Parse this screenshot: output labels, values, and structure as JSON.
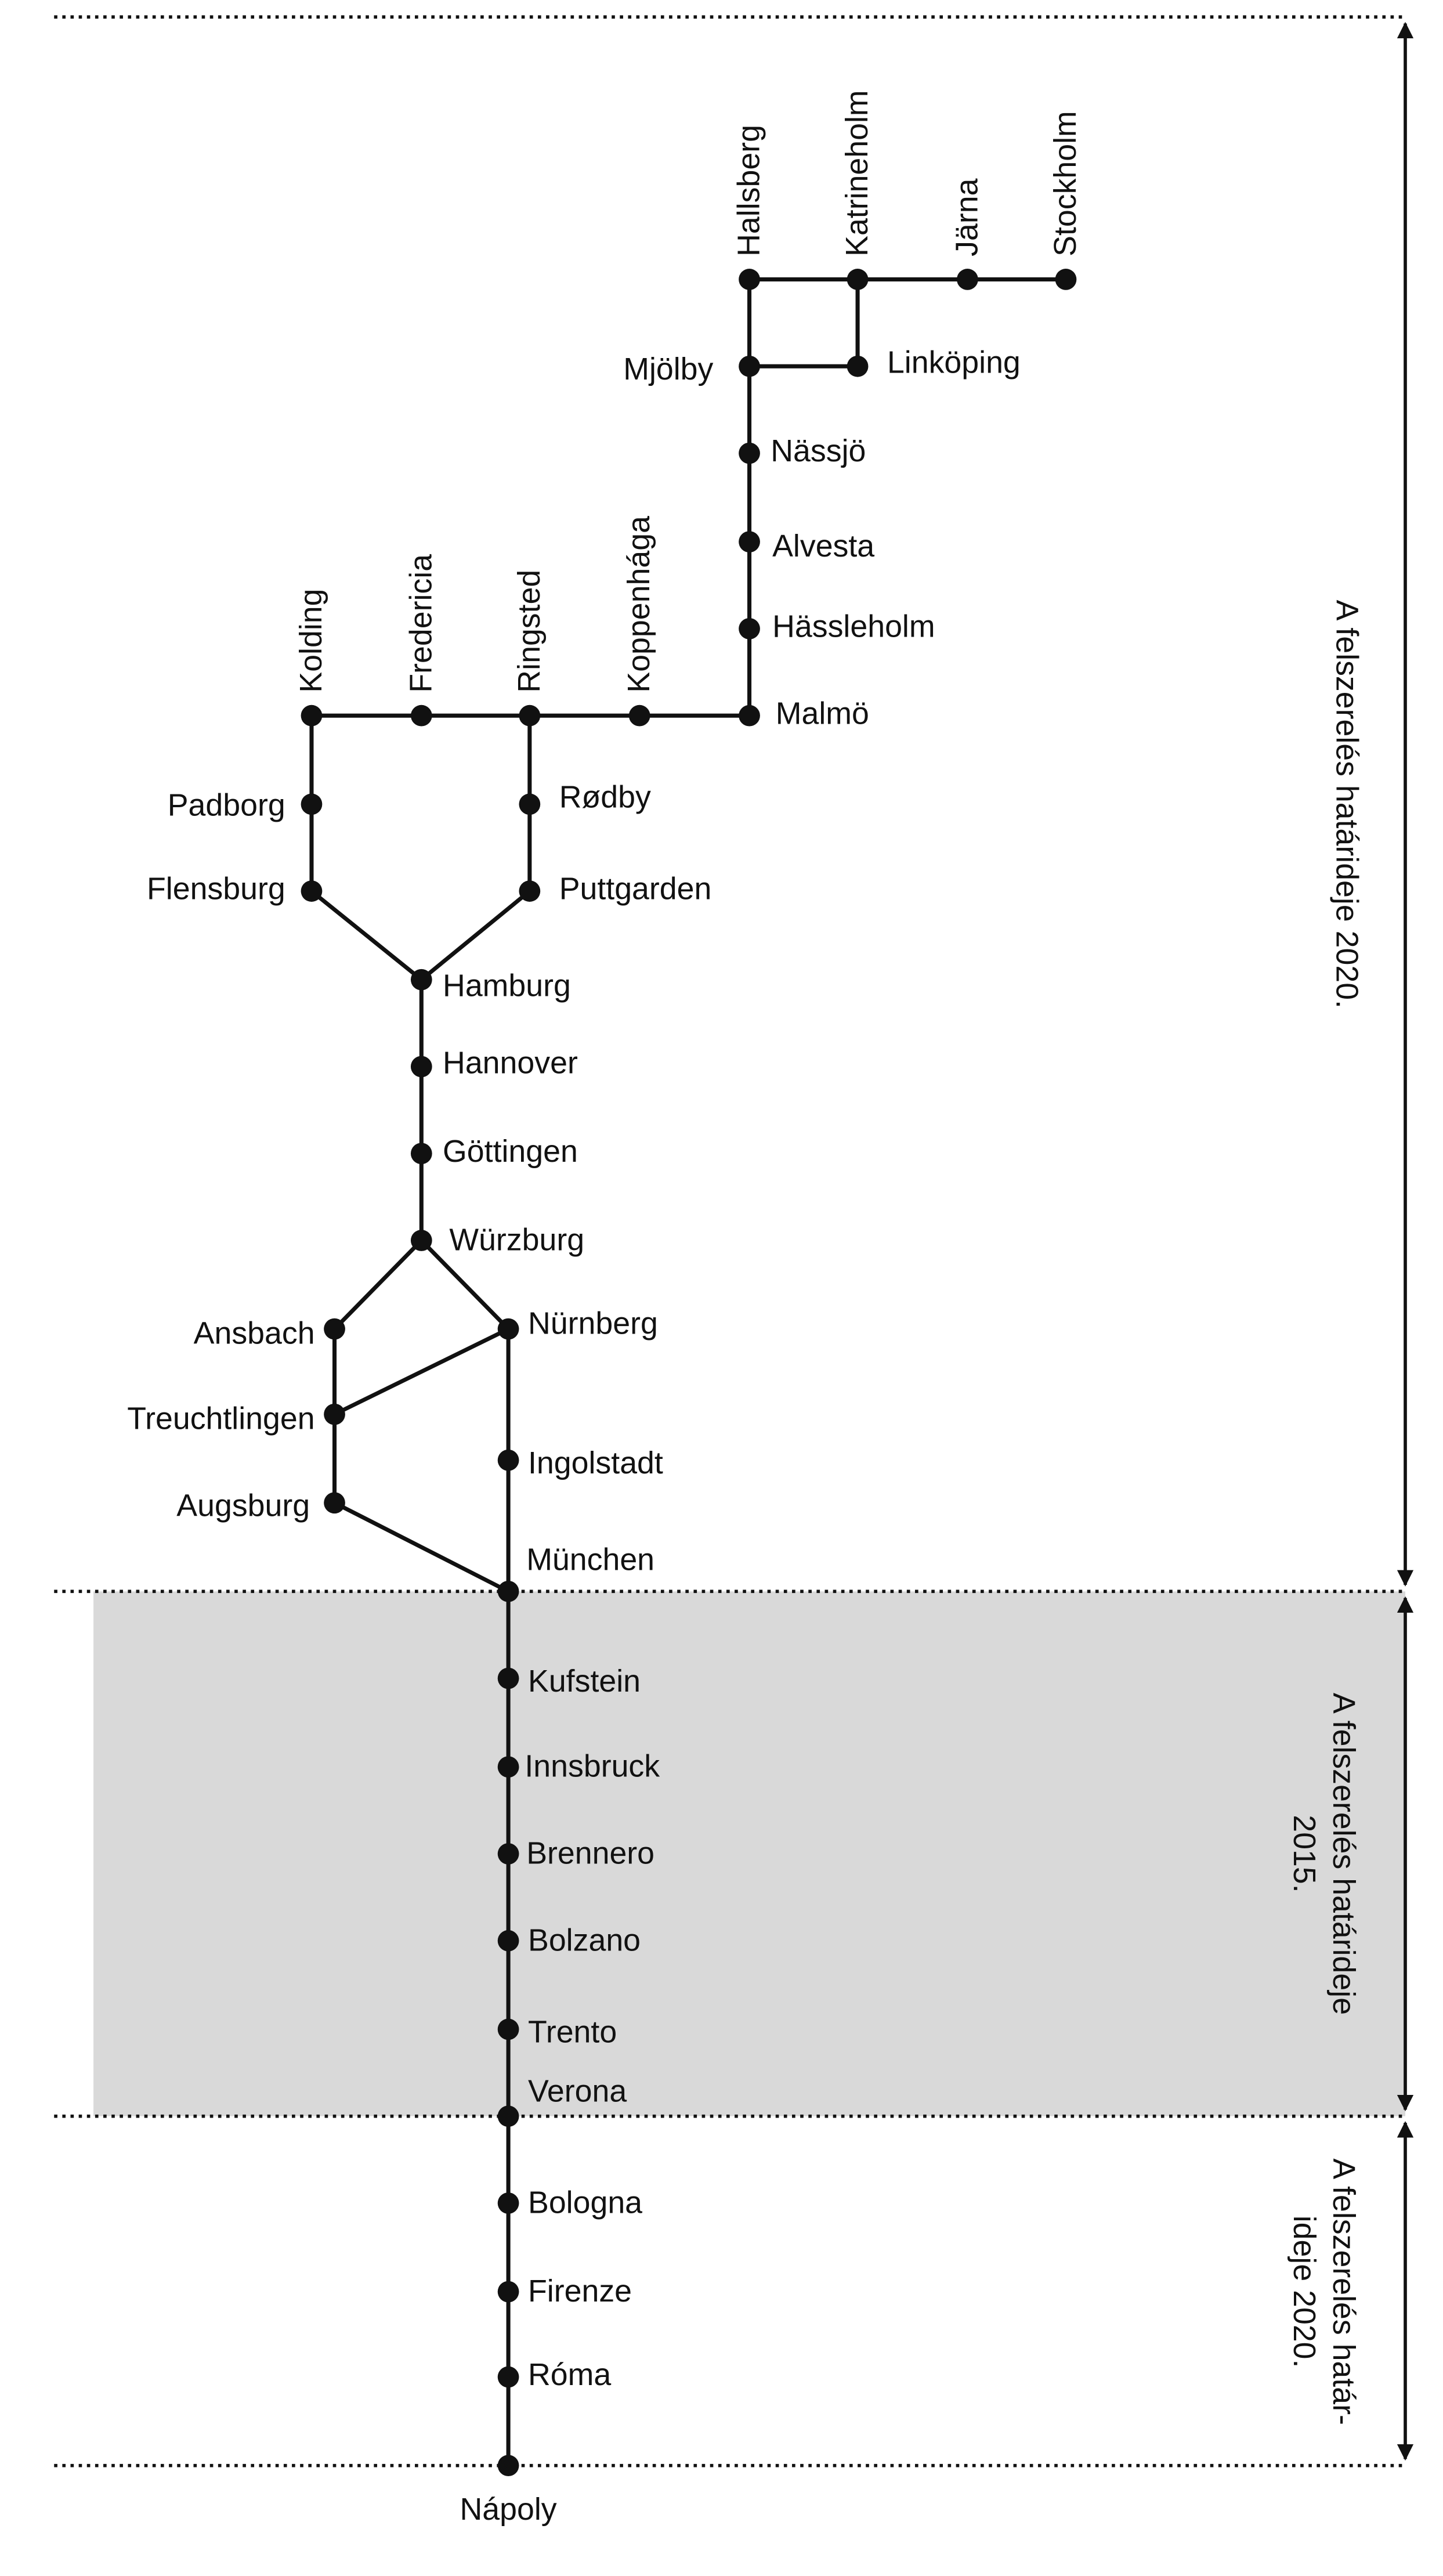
{
  "nodes": [
    {
      "label": "Hallsberg"
    },
    {
      "label": "Katrineholm"
    },
    {
      "label": "Järna"
    },
    {
      "label": "Stockholm"
    },
    {
      "label": "Mjölby"
    },
    {
      "label": "Linköping"
    },
    {
      "label": "Nässjö"
    },
    {
      "label": "Alvesta"
    },
    {
      "label": "Hässleholm"
    },
    {
      "label": "Malmö"
    },
    {
      "label": "Koppenhága"
    },
    {
      "label": "Ringsted"
    },
    {
      "label": "Fredericia"
    },
    {
      "label": "Kolding"
    },
    {
      "label": "Rødby"
    },
    {
      "label": "Padborg"
    },
    {
      "label": "Puttgarden"
    },
    {
      "label": "Flensburg"
    },
    {
      "label": "Hamburg"
    },
    {
      "label": "Hannover"
    },
    {
      "label": "Göttingen"
    },
    {
      "label": "Würzburg"
    },
    {
      "label": "Ansbach"
    },
    {
      "label": "Nürnberg"
    },
    {
      "label": "Treuchtlingen"
    },
    {
      "label": "Ingolstadt"
    },
    {
      "label": "Augsburg"
    },
    {
      "label": "München"
    },
    {
      "label": "Kufstein"
    },
    {
      "label": "Innsbruck"
    },
    {
      "label": "Brennero"
    },
    {
      "label": "Bolzano"
    },
    {
      "label": "Trento"
    },
    {
      "label": "Verona"
    },
    {
      "label": "Bologna"
    },
    {
      "label": "Firenze"
    },
    {
      "label": "Róma"
    },
    {
      "label": "Nápoly"
    }
  ],
  "deadlines": [
    {
      "lines": [
        "A felszerelés határideje 2020."
      ]
    },
    {
      "lines": [
        "A felszerelés határideje",
        "2015."
      ]
    },
    {
      "lines": [
        "A felszerelés határ-",
        "ideje 2020."
      ]
    }
  ]
}
